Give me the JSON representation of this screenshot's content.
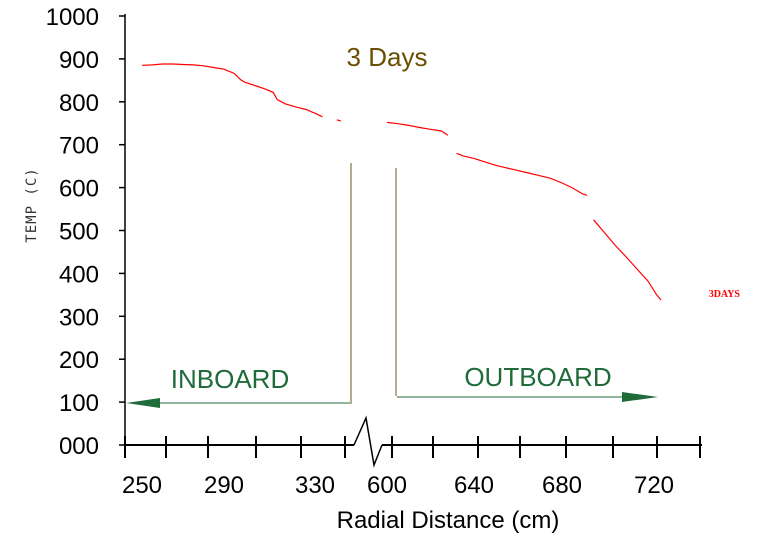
{
  "chart_data": {
    "type": "line",
    "title": "3 Days",
    "xlabel": "Radial Distance (cm)",
    "ylabel": "TEMP (C)",
    "ylim": [
      0,
      1000
    ],
    "y_tick_labels": [
      "000",
      "100",
      "200",
      "300",
      "400",
      "500",
      "600",
      "700",
      "800",
      "900",
      "1000"
    ],
    "x_tick_labels": [
      "250",
      "290",
      "330",
      "600",
      "640",
      "680",
      "720"
    ],
    "axis_break": "between 330 and 600",
    "grid": false,
    "series": [
      {
        "name": "3DAYS",
        "color": "#ff0000",
        "segments": [
          {
            "x": [
              250,
              255,
              260,
              265,
              270,
              275,
              280,
              285,
              290,
              295,
              298,
              300,
              305,
              310,
              314,
              316,
              320,
              325,
              330,
              335,
              338
            ],
            "y": [
              885,
              886,
              888,
              888,
              887,
              886,
              884,
              880,
              876,
              866,
              852,
              846,
              838,
              830,
              822,
              805,
              795,
              788,
              782,
              772,
              765
            ]
          },
          {
            "x": [
              345,
              347
            ],
            "y": [
              758,
              755
            ]
          },
          {
            "x": [
              600,
              605,
              610,
              615,
              620,
              625,
              628
            ],
            "y": [
              752,
              749,
              745,
              740,
              736,
              732,
              722
            ]
          },
          {
            "x": [
              632,
              635,
              640,
              645,
              650,
              655,
              660,
              665,
              670,
              675,
              680,
              685,
              690,
              692
            ],
            "y": [
              680,
              674,
              668,
              660,
              652,
              646,
              640,
              634,
              628,
              622,
              612,
              600,
              585,
              582
            ]
          },
          {
            "x": [
              695,
              700,
              705,
              710,
              715,
              720,
              724,
              726
            ],
            "y": [
              525,
              495,
              465,
              438,
              410,
              382,
              350,
              338
            ]
          }
        ]
      }
    ],
    "annotations": [
      {
        "text": "INBOARD",
        "arrow": "left"
      },
      {
        "text": "OUTBOARD",
        "arrow": "right"
      }
    ],
    "colors": {
      "title": "#6b4f00",
      "annotation": "#1f6b3a",
      "divider": "#6b5a1f",
      "series": "#ff0000"
    }
  }
}
